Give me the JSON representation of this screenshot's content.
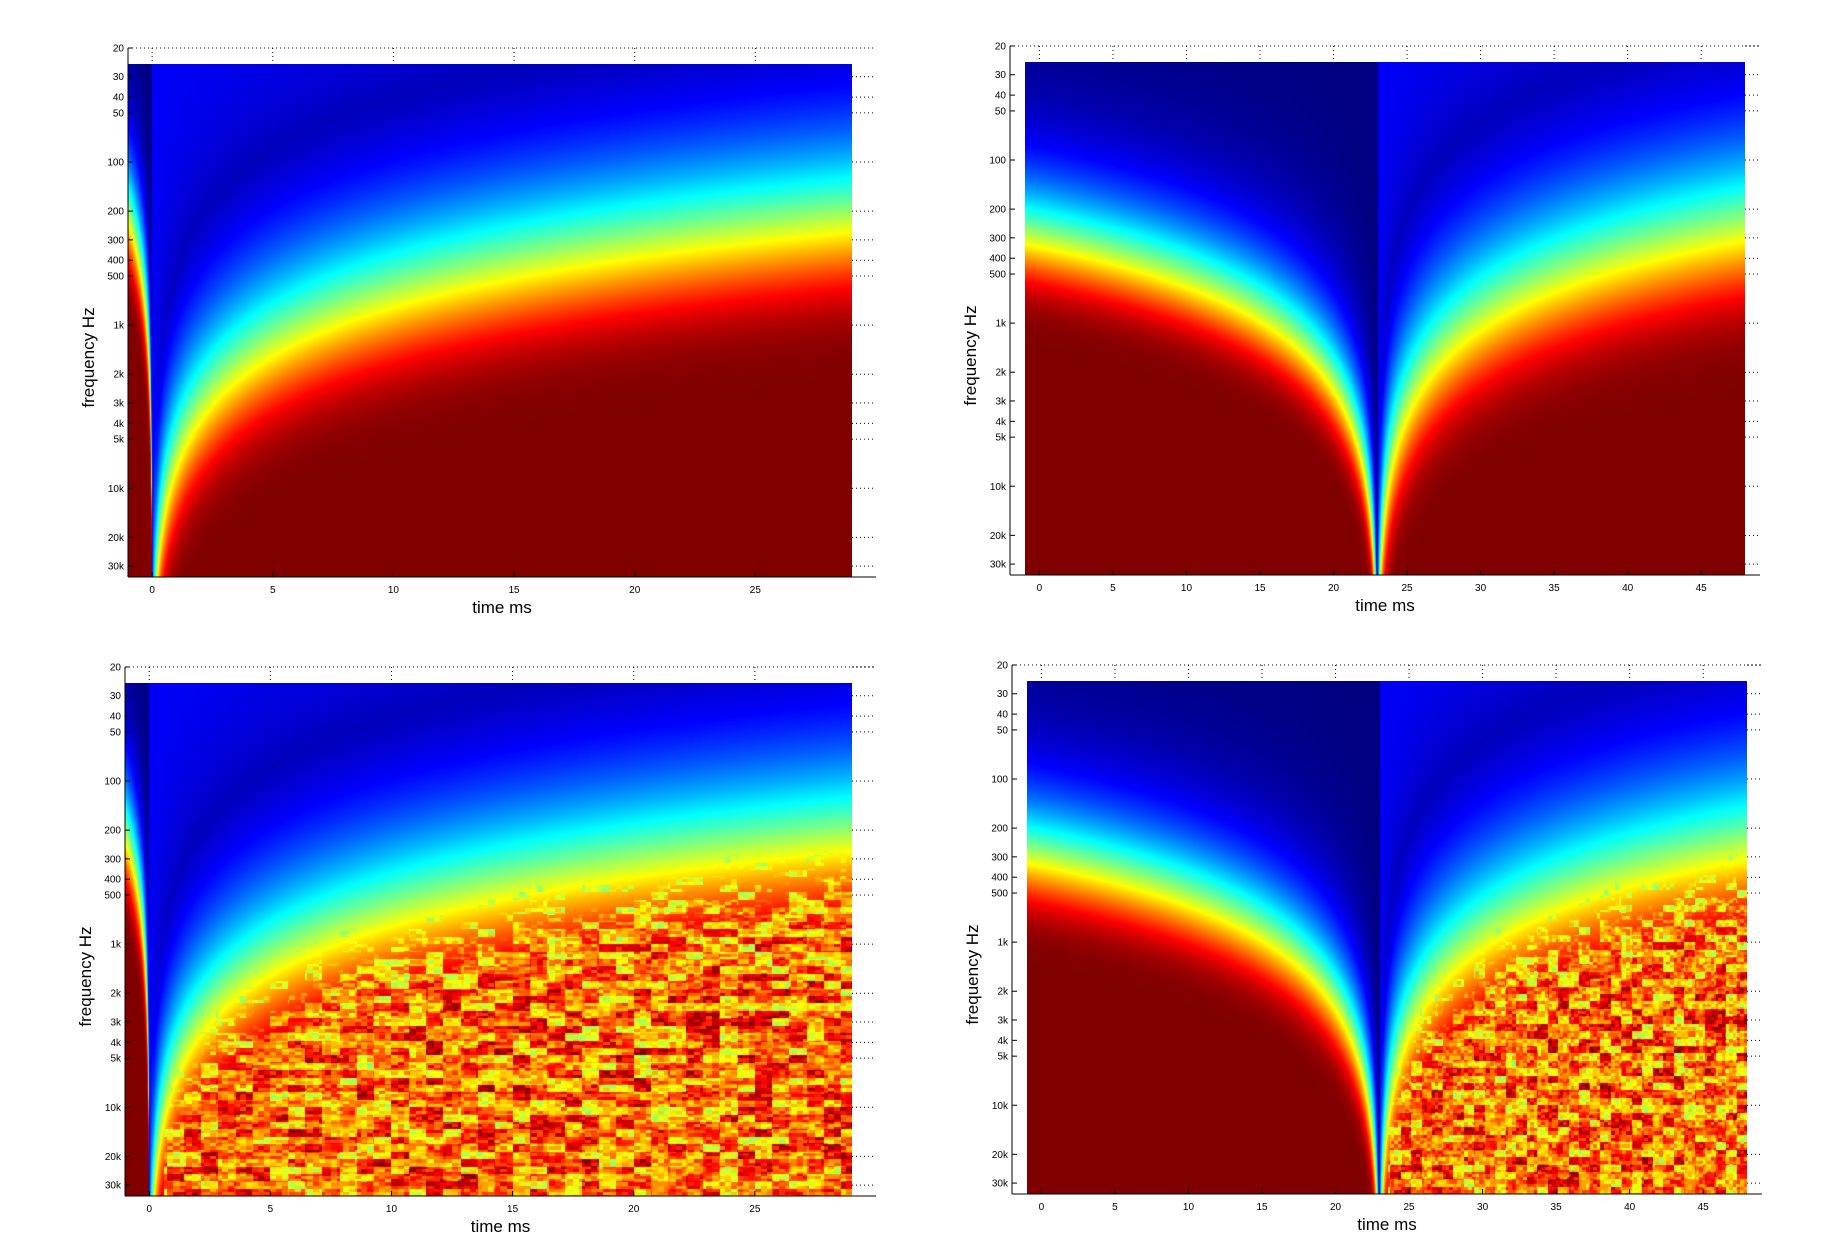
{
  "chart_data": [
    {
      "type": "heatmap",
      "title": "",
      "xlabel": "time   ms",
      "ylabel": "frequency   Hz",
      "xlim": [
        -1,
        30
      ],
      "xticks": [
        0,
        5,
        10,
        15,
        20,
        25
      ],
      "xtick_labels": [
        "0",
        "5",
        "10",
        "15",
        "20",
        "25"
      ],
      "ylim": [
        20,
        35000
      ],
      "yscale": "log",
      "yticks": [
        20,
        30,
        40,
        50,
        100,
        200,
        300,
        400,
        500,
        1000,
        2000,
        3000,
        4000,
        5000,
        10000,
        20000,
        30000
      ],
      "ytick_labels": [
        "20",
        "30",
        "40",
        "50",
        "100",
        "200",
        "300",
        "400",
        "500",
        "1k",
        "2k",
        "3k",
        "4k",
        "5k",
        "10k",
        "20k",
        "30k"
      ],
      "data_extent": {
        "x": [
          -1,
          29
        ],
        "f": [
          25,
          35000
        ]
      },
      "colormap": "jet",
      "grid": "dotted ticks at right edge",
      "pattern": "clean decay",
      "impulse_time_ms": 0
    },
    {
      "type": "heatmap",
      "title": "",
      "xlabel": "time   ms",
      "ylabel": "frequency   Hz",
      "xlim": [
        -2,
        49
      ],
      "xticks": [
        0,
        5,
        10,
        15,
        20,
        25,
        30,
        35,
        40,
        45
      ],
      "xtick_labels": [
        "0",
        "5",
        "10",
        "15",
        "20",
        "25",
        "30",
        "35",
        "40",
        "45"
      ],
      "ylim": [
        20,
        35000
      ],
      "yscale": "log",
      "yticks": [
        20,
        30,
        40,
        50,
        100,
        200,
        300,
        400,
        500,
        1000,
        2000,
        3000,
        4000,
        5000,
        10000,
        20000,
        30000
      ],
      "ytick_labels": [
        "20",
        "30",
        "40",
        "50",
        "100",
        "200",
        "300",
        "400",
        "500",
        "1k",
        "2k",
        "3k",
        "4k",
        "5k",
        "10k",
        "20k",
        "30k"
      ],
      "data_extent": {
        "x": [
          -1,
          48
        ],
        "f": [
          25,
          35000
        ]
      },
      "colormap": "jet",
      "grid": "dotted ticks at right edge",
      "pattern": "clean symmetric",
      "impulse_time_ms": 23
    },
    {
      "type": "heatmap",
      "title": "",
      "xlabel": "time   ms",
      "ylabel": "frequency   Hz",
      "xlim": [
        -1,
        30
      ],
      "xticks": [
        0,
        5,
        10,
        15,
        20,
        25
      ],
      "xtick_labels": [
        "0",
        "5",
        "10",
        "15",
        "20",
        "25"
      ],
      "ylim": [
        20,
        35000
      ],
      "yscale": "log",
      "yticks": [
        20,
        30,
        40,
        50,
        100,
        200,
        300,
        400,
        500,
        1000,
        2000,
        3000,
        4000,
        5000,
        10000,
        20000,
        30000
      ],
      "ytick_labels": [
        "20",
        "30",
        "40",
        "50",
        "100",
        "200",
        "300",
        "400",
        "500",
        "1k",
        "2k",
        "3k",
        "4k",
        "5k",
        "10k",
        "20k",
        "30k"
      ],
      "data_extent": {
        "x": [
          -1,
          29
        ],
        "f": [
          25,
          35000
        ]
      },
      "colormap": "jet",
      "grid": "dotted ticks at right edge",
      "pattern": "reverberant decay",
      "impulse_time_ms": 0
    },
    {
      "type": "heatmap",
      "title": "",
      "xlabel": "time   ms",
      "ylabel": "frequency   Hz",
      "xlim": [
        -2,
        49
      ],
      "xticks": [
        0,
        5,
        10,
        15,
        20,
        25,
        30,
        35,
        40,
        45
      ],
      "xtick_labels": [
        "0",
        "5",
        "10",
        "15",
        "20",
        "25",
        "30",
        "35",
        "40",
        "45"
      ],
      "ylim": [
        20,
        35000
      ],
      "yscale": "log",
      "yticks": [
        20,
        30,
        40,
        50,
        100,
        200,
        300,
        400,
        500,
        1000,
        2000,
        3000,
        4000,
        5000,
        10000,
        20000,
        30000
      ],
      "ytick_labels": [
        "20",
        "30",
        "40",
        "50",
        "100",
        "200",
        "300",
        "400",
        "500",
        "1k",
        "2k",
        "3k",
        "4k",
        "5k",
        "10k",
        "20k",
        "30k"
      ],
      "data_extent": {
        "x": [
          -1,
          48
        ],
        "f": [
          25,
          35000
        ]
      },
      "colormap": "jet",
      "grid": "dotted ticks at right edge",
      "pattern": "symmetric then reverberant",
      "impulse_time_ms": 23
    }
  ]
}
